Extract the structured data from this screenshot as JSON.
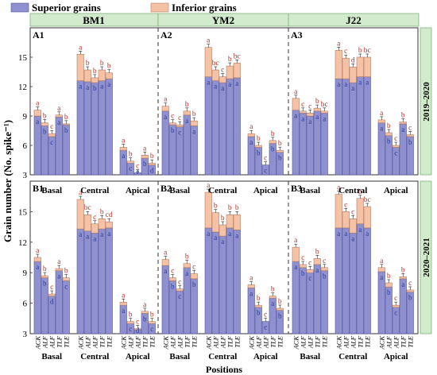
{
  "legend": {
    "items": [
      "Superior grains",
      "Inferior grains"
    ]
  },
  "colors": {
    "superior": "#8e90cf",
    "superior_stroke": "#52559a",
    "inferior": "#f5c2a6",
    "inferior_stroke": "#b27c62",
    "header_fill": "#d2ebcc",
    "header_stroke": "#7fb27a",
    "letter_red": "#b0302a",
    "letter_blue": "#2a3b9a"
  },
  "chart_data": {
    "type": "bar",
    "stacked": true,
    "ylabel": "Grain number (No. spike⁻¹)",
    "xlabel": "Positions",
    "ylim": [
      3,
      18
    ],
    "yticks": [
      3,
      6,
      9,
      12,
      15
    ],
    "cultivars": [
      "BM1",
      "YM2",
      "J22"
    ],
    "years": [
      "2019–2020",
      "2020–2021"
    ],
    "positions": [
      "Basal",
      "Central",
      "Apical"
    ],
    "treatments": [
      "ACK",
      "ALF",
      "ALF",
      "TLF",
      "TLE"
    ],
    "panels": [
      {
        "label": "A1",
        "superior": [
          [
            9.0,
            8.0,
            6.9,
            8.9,
            8.1
          ],
          [
            12.6,
            12.5,
            12.4,
            12.6,
            12.8
          ],
          [
            5.5,
            4.2,
            3.2,
            4.7,
            4.0
          ]
        ],
        "inferior": [
          [
            0.6,
            0.3,
            0.3,
            0.2,
            0.1
          ],
          [
            2.7,
            1.2,
            0.5,
            1.1,
            0.6
          ],
          [
            0.3,
            0.2,
            0.0,
            0.3,
            0.2
          ]
        ],
        "totals_letters": [
          [
            "a",
            "b",
            "c",
            "a",
            "b"
          ],
          [
            "a",
            "b",
            "b",
            "b",
            "b"
          ],
          [
            "a",
            "b",
            "c",
            "a",
            "b"
          ]
        ],
        "sup_letters": [
          [
            "a",
            "b",
            "c",
            "a",
            "b"
          ],
          [
            "a",
            "a",
            "b",
            "a",
            "a"
          ],
          [
            "a",
            "c",
            "e",
            "b",
            "d"
          ]
        ]
      },
      {
        "label": "A2",
        "superior": [
          [
            9.5,
            8.1,
            7.9,
            9.1,
            8.0
          ],
          [
            13.0,
            12.6,
            12.4,
            12.8,
            12.9
          ],
          [
            6.9,
            5.8,
            4.0,
            6.2,
            5.3
          ]
        ],
        "inferior": [
          [
            0.5,
            0.2,
            0.2,
            0.4,
            0.5
          ],
          [
            3.0,
            1.1,
            0.6,
            1.3,
            1.5
          ],
          [
            0.3,
            0.2,
            0.0,
            0.3,
            0.2
          ]
        ],
        "totals_letters": [
          [
            "a",
            "c",
            "c",
            "b",
            "b"
          ],
          [
            "a",
            "bc",
            "c",
            "b",
            "bc"
          ],
          [
            "a",
            "b",
            "c",
            "b",
            "b"
          ]
        ],
        "sup_letters": [
          [
            "a",
            "b",
            "c",
            "a",
            "a"
          ],
          [
            "a",
            "a",
            "a",
            "a",
            "a"
          ],
          [
            "a",
            "b",
            "c",
            "b",
            "b"
          ]
        ]
      },
      {
        "label": "A3",
        "superior": [
          [
            9.6,
            9.3,
            9.0,
            9.5,
            9.3
          ],
          [
            12.8,
            12.8,
            12.4,
            13.0,
            13.0
          ],
          [
            8.3,
            7.0,
            5.8,
            8.2,
            6.9
          ]
        ],
        "inferior": [
          [
            1.2,
            0.2,
            0.3,
            0.3,
            0.2
          ],
          [
            2.9,
            2.1,
            1.6,
            2.0,
            2.0
          ],
          [
            0.3,
            0.3,
            0.2,
            0.2,
            0.2
          ]
        ],
        "totals_letters": [
          [
            "a",
            "c",
            "c",
            "b",
            "bc"
          ],
          [
            "a",
            "c",
            "d",
            "b",
            "bc"
          ],
          [
            "a",
            "b",
            "c",
            "b",
            "c"
          ]
        ],
        "sup_letters": [
          [
            "a",
            "a",
            "a",
            "a",
            "a"
          ],
          [
            "a",
            "a",
            "a",
            "a",
            "a"
          ],
          [
            "a",
            "b",
            "c",
            "a",
            "b"
          ]
        ]
      },
      {
        "label": "B1",
        "superior": [
          [
            10.1,
            8.5,
            6.7,
            9.2,
            8.2
          ],
          [
            13.3,
            13.1,
            12.9,
            13.3,
            13.4
          ],
          [
            5.8,
            4.0,
            3.4,
            5.0,
            4.0
          ]
        ],
        "inferior": [
          [
            0.4,
            0.2,
            0.2,
            0.2,
            0.3
          ],
          [
            2.9,
            1.6,
            0.9,
            1.0,
            0.6
          ],
          [
            0.3,
            0.2,
            0.1,
            0.2,
            0.2
          ]
        ],
        "totals_letters": [
          [
            "a",
            "b",
            "c",
            "a",
            "b"
          ],
          [
            "a",
            "bc",
            "c",
            "b",
            "cd"
          ],
          [
            "a",
            "b",
            "c",
            "a",
            "b"
          ]
        ],
        "sup_letters": [
          [
            "a",
            "b",
            "d",
            "a",
            "c"
          ],
          [
            "a",
            "a",
            "a",
            "a",
            "a"
          ],
          [
            "a",
            "c",
            "d",
            "b",
            "c"
          ]
        ]
      },
      {
        "label": "B2",
        "superior": [
          [
            9.7,
            8.2,
            7.2,
            9.5,
            8.4
          ],
          [
            13.4,
            13.0,
            12.6,
            13.4,
            13.2
          ],
          [
            7.5,
            5.6,
            4.2,
            6.5,
            5.3
          ]
        ],
        "inferior": [
          [
            0.6,
            0.3,
            0.2,
            0.4,
            0.5
          ],
          [
            3.5,
            1.9,
            1.1,
            1.3,
            1.5
          ],
          [
            0.3,
            0.2,
            0.0,
            0.2,
            0.2
          ]
        ],
        "totals_letters": [
          [
            "a",
            "c",
            "c",
            "b",
            "c"
          ],
          [
            "a",
            "b",
            "b",
            "b",
            "b"
          ],
          [
            "a",
            "b",
            "c",
            "b",
            "b"
          ]
        ],
        "sup_letters": [
          [
            "a",
            "b",
            "c",
            "a",
            "b"
          ],
          [
            "a",
            "a",
            "a",
            "a",
            "a"
          ],
          [
            "a",
            "b",
            "c",
            "a",
            "b"
          ]
        ]
      },
      {
        "label": "B3",
        "superior": [
          [
            10.1,
            9.5,
            9.0,
            9.8,
            9.2
          ],
          [
            13.4,
            13.4,
            12.9,
            13.8,
            13.4
          ],
          [
            9.1,
            7.6,
            5.6,
            8.4,
            7.1
          ]
        ],
        "inferior": [
          [
            1.4,
            0.3,
            0.3,
            0.6,
            0.3
          ],
          [
            3.3,
            1.6,
            1.4,
            2.5,
            2.1
          ],
          [
            0.4,
            0.4,
            0.2,
            0.2,
            0.2
          ]
        ],
        "totals_letters": [
          [
            "a",
            "c",
            "c",
            "b",
            "c"
          ],
          [
            "a",
            "c",
            "c",
            "b",
            "bc"
          ],
          [
            "a",
            "b",
            "c",
            "b",
            "c"
          ]
        ],
        "sup_letters": [
          [
            "a",
            "b",
            "c",
            "a",
            "b"
          ],
          [
            "a",
            "a",
            "a",
            "a",
            "a"
          ],
          [
            "a",
            "b",
            "c",
            "a",
            "b"
          ]
        ]
      }
    ]
  }
}
